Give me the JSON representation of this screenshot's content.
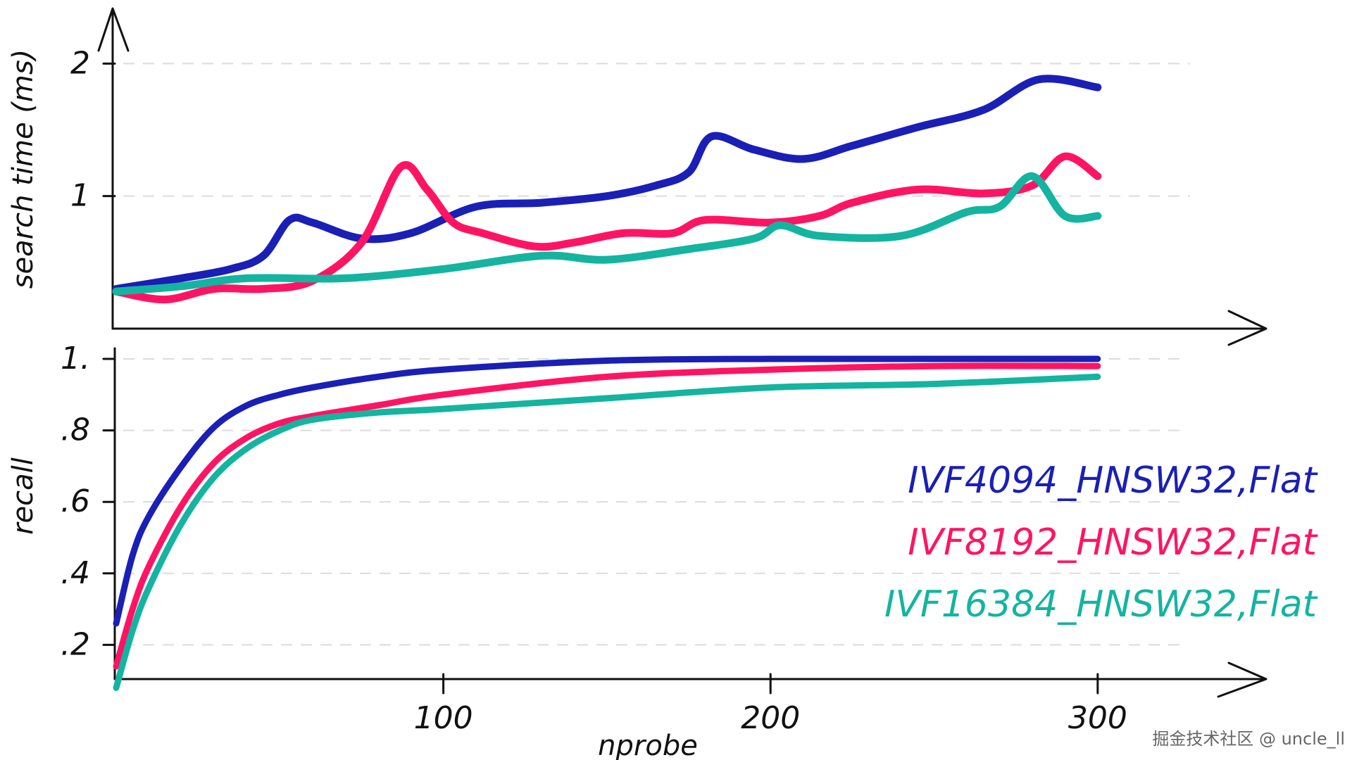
{
  "chart_data": [
    {
      "type": "line",
      "ylabel": "search time (ms)",
      "xlim": [
        0,
        325
      ],
      "ylim": [
        0,
        2.4
      ],
      "yticks": [
        1,
        2
      ],
      "ytick_labels": [
        "1",
        "2"
      ],
      "grid": true,
      "series": [
        {
          "name": "IVF4094_HNSW32,Flat",
          "color": "#1a1fb5",
          "x": [
            0,
            20,
            35,
            45,
            53,
            60,
            75,
            90,
            110,
            130,
            150,
            165,
            175,
            182,
            195,
            210,
            225,
            245,
            265,
            282,
            300
          ],
          "y": [
            0.3,
            0.38,
            0.45,
            0.55,
            0.82,
            0.8,
            0.68,
            0.72,
            0.92,
            0.95,
            1.0,
            1.08,
            1.18,
            1.45,
            1.35,
            1.28,
            1.38,
            1.52,
            1.65,
            1.88,
            1.82
          ]
        },
        {
          "name": "IVF8192_HNSW32,Flat",
          "color": "#ff1464",
          "x": [
            0,
            15,
            30,
            45,
            60,
            75,
            87,
            95,
            103,
            112,
            128,
            140,
            155,
            170,
            180,
            200,
            215,
            225,
            245,
            265,
            280,
            290,
            300
          ],
          "y": [
            0.28,
            0.22,
            0.3,
            0.3,
            0.36,
            0.65,
            1.22,
            1.05,
            0.8,
            0.72,
            0.62,
            0.65,
            0.72,
            0.72,
            0.82,
            0.8,
            0.85,
            0.95,
            1.05,
            1.02,
            1.08,
            1.3,
            1.15
          ]
        },
        {
          "name": "IVF16384_HNSW32,Flat",
          "color": "#14b4a0",
          "x": [
            0,
            20,
            40,
            70,
            100,
            130,
            150,
            175,
            195,
            203,
            215,
            240,
            260,
            270,
            280,
            290,
            300
          ],
          "y": [
            0.28,
            0.32,
            0.38,
            0.38,
            0.45,
            0.55,
            0.52,
            0.6,
            0.68,
            0.78,
            0.7,
            0.7,
            0.88,
            0.92,
            1.15,
            0.85,
            0.85
          ]
        }
      ]
    },
    {
      "type": "line",
      "xlabel": "nprobe",
      "ylabel": "recall",
      "xlim": [
        0,
        325
      ],
      "ylim": [
        0.0,
        1.0
      ],
      "xticks": [
        100,
        200,
        300
      ],
      "xtick_labels": [
        "100",
        "200",
        "300"
      ],
      "yticks": [
        0.2,
        0.4,
        0.6,
        0.8,
        1.0
      ],
      "ytick_labels": [
        ".2",
        ".4",
        ".6",
        ".8",
        "1."
      ],
      "grid": true,
      "legend": "right",
      "series": [
        {
          "name": "IVF4094_HNSW32,Flat",
          "color": "#1a1fb5",
          "x": [
            0,
            5,
            10,
            20,
            30,
            40,
            50,
            60,
            80,
            100,
            150,
            200,
            250,
            300
          ],
          "y": [
            0.26,
            0.45,
            0.56,
            0.7,
            0.81,
            0.87,
            0.9,
            0.92,
            0.95,
            0.97,
            0.995,
            1.0,
            1.0,
            1.0
          ]
        },
        {
          "name": "IVF8192_HNSW32,Flat",
          "color": "#ff1464",
          "x": [
            0,
            5,
            10,
            20,
            30,
            40,
            50,
            60,
            80,
            100,
            150,
            200,
            250,
            300
          ],
          "y": [
            0.14,
            0.3,
            0.42,
            0.59,
            0.71,
            0.78,
            0.82,
            0.84,
            0.87,
            0.9,
            0.95,
            0.97,
            0.98,
            0.98
          ]
        },
        {
          "name": "IVF16384_HNSW32,Flat",
          "color": "#14b4a0",
          "x": [
            0,
            5,
            10,
            20,
            30,
            40,
            50,
            60,
            80,
            100,
            150,
            200,
            250,
            300
          ],
          "y": [
            0.08,
            0.24,
            0.36,
            0.54,
            0.67,
            0.75,
            0.8,
            0.83,
            0.85,
            0.86,
            0.89,
            0.92,
            0.93,
            0.95
          ]
        }
      ]
    }
  ],
  "legend": {
    "items": [
      {
        "label": "IVF4094_HNSW32,Flat",
        "color": "#1a1fb5"
      },
      {
        "label": "IVF8192_HNSW32,Flat",
        "color": "#ff1464"
      },
      {
        "label": "IVF16384_HNSW32,Flat",
        "color": "#14b4a0"
      }
    ]
  },
  "watermark": "掘金技术社区 @ uncle_ll"
}
